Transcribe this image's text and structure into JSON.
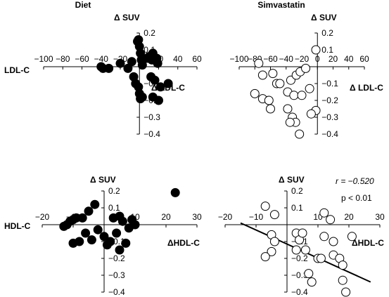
{
  "chart_data": [
    {
      "type": "scatter",
      "title": "Diet",
      "x_axis_label": "LDL-C",
      "x_axis_label_right": "Δ LDL-C",
      "y_axis_label": "Δ SUV",
      "xlim": [
        -100,
        60
      ],
      "ylim": [
        -0.4,
        0.2
      ],
      "x_ticks": [
        -100,
        -80,
        -60,
        -40,
        -20,
        0,
        20,
        40,
        60
      ],
      "y_ticks": [
        0.2,
        0.1,
        -0.1,
        -0.2,
        -0.3,
        -0.4
      ],
      "marker": "filled",
      "points": [
        [
          -40,
          0
        ],
        [
          -38,
          -0.01
        ],
        [
          -32,
          -0.01
        ],
        [
          -20,
          0.02
        ],
        [
          -12,
          -0.01
        ],
        [
          -8,
          0.03
        ],
        [
          -2,
          0.15
        ],
        [
          -1,
          0.16
        ],
        [
          0,
          0.12
        ],
        [
          1,
          0.08
        ],
        [
          2,
          0.04
        ],
        [
          3,
          0.01
        ],
        [
          8,
          0.05
        ],
        [
          10,
          0.06
        ],
        [
          13,
          0.04
        ],
        [
          14,
          0.08
        ],
        [
          18,
          0.05
        ],
        [
          19,
          0.02
        ],
        [
          -6,
          -0.06
        ],
        [
          -4,
          -0.1
        ],
        [
          -1,
          -0.12
        ],
        [
          0,
          -0.16
        ],
        [
          1,
          -0.19
        ],
        [
          3,
          -0.18
        ],
        [
          12,
          -0.06
        ],
        [
          16,
          -0.08
        ],
        [
          22,
          -0.12
        ],
        [
          30,
          -0.1
        ],
        [
          14,
          -0.18
        ],
        [
          20,
          -0.2
        ]
      ]
    },
    {
      "type": "scatter",
      "title": "Simvastatin",
      "x_axis_label": "",
      "x_axis_label_right": "Δ LDL-C",
      "y_axis_label": "Δ SUV",
      "xlim": [
        -100,
        60
      ],
      "ylim": [
        -0.4,
        0.2
      ],
      "x_ticks": [
        -100,
        -80,
        -60,
        -40,
        -20,
        0,
        20,
        40,
        60
      ],
      "y_ticks": [
        0.2,
        0.1,
        -0.1,
        -0.2,
        -0.3,
        -0.4
      ],
      "marker": "open",
      "points": [
        [
          -75,
          0.02
        ],
        [
          -70,
          -0.05
        ],
        [
          -57,
          -0.04
        ],
        [
          -52,
          -0.1
        ],
        [
          -48,
          -0.1
        ],
        [
          -80,
          -0.16
        ],
        [
          -70,
          -0.19
        ],
        [
          -62,
          -0.2
        ],
        [
          -60,
          -0.25
        ],
        [
          -34,
          -0.08
        ],
        [
          -27,
          -0.05
        ],
        [
          -22,
          -0.03
        ],
        [
          -15,
          -0.01
        ],
        [
          -38,
          -0.15
        ],
        [
          -30,
          -0.17
        ],
        [
          -20,
          -0.17
        ],
        [
          -10,
          -0.13
        ],
        [
          -38,
          -0.25
        ],
        [
          -32,
          -0.3
        ],
        [
          -28,
          -0.33
        ],
        [
          -23,
          -0.4
        ],
        [
          -2,
          -0.26
        ],
        [
          -8,
          -0.28
        ],
        [
          -2,
          0.1
        ],
        [
          -35,
          -0.33
        ]
      ]
    },
    {
      "type": "scatter",
      "title": "",
      "x_axis_label": "HDL-C",
      "x_axis_label_right": "ΔHDL-C",
      "y_axis_label": "Δ SUV",
      "xlim": [
        -20,
        30
      ],
      "ylim": [
        -0.4,
        0.2
      ],
      "x_ticks": [
        -20,
        -10,
        10,
        20,
        30
      ],
      "y_ticks": [
        0.2,
        0.1,
        -0.1,
        -0.2,
        -0.3,
        -0.4
      ],
      "marker": "filled",
      "points": [
        [
          -13,
          -0.01
        ],
        [
          -12,
          0.0
        ],
        [
          -11,
          0.02
        ],
        [
          -10,
          0.03
        ],
        [
          -9,
          0.04
        ],
        [
          -7,
          0.04
        ],
        [
          -5,
          0.08
        ],
        [
          -3,
          0.12
        ],
        [
          -10,
          -0.11
        ],
        [
          -8,
          -0.1
        ],
        [
          -6,
          -0.05
        ],
        [
          -4,
          -0.09
        ],
        [
          -2,
          -0.03
        ],
        [
          0,
          -0.07
        ],
        [
          1,
          -0.12
        ],
        [
          2,
          -0.1
        ],
        [
          4,
          -0.05
        ],
        [
          5,
          -0.15
        ],
        [
          3,
          0.04
        ],
        [
          5,
          0.05
        ],
        [
          6,
          0.02
        ],
        [
          8,
          -0.02
        ],
        [
          9,
          0.03
        ],
        [
          10,
          0.0
        ],
        [
          7,
          -0.11
        ],
        [
          23,
          0.19
        ]
      ]
    },
    {
      "type": "scatter",
      "title": "",
      "x_axis_label": "",
      "x_axis_label_right": "ΔHDL-C",
      "y_axis_label": "Δ SUV",
      "xlim": [
        -20,
        30
      ],
      "ylim": [
        -0.4,
        0.2
      ],
      "x_ticks": [
        -20,
        -10,
        10,
        20,
        30
      ],
      "y_ticks": [
        0.2,
        0.1,
        -0.1,
        -0.2,
        -0.3,
        -0.4
      ],
      "marker": "open",
      "annotations": [
        "r = −0.520",
        "p < 0.01"
      ],
      "regression_line": {
        "x": [
          -15,
          27
        ],
        "y": [
          0.01,
          -0.34
        ]
      },
      "points": [
        [
          -7,
          0.11
        ],
        [
          -4,
          0.06
        ],
        [
          -5,
          -0.06
        ],
        [
          -4,
          -0.1
        ],
        [
          -5,
          -0.16
        ],
        [
          -7,
          -0.19
        ],
        [
          3,
          -0.05
        ],
        [
          4,
          -0.09
        ],
        [
          3,
          -0.15
        ],
        [
          5,
          -0.05
        ],
        [
          6,
          -0.15
        ],
        [
          7,
          -0.29
        ],
        [
          8,
          -0.34
        ],
        [
          10,
          -0.2
        ],
        [
          11,
          -0.2
        ],
        [
          12,
          0.07
        ],
        [
          14,
          0.03
        ],
        [
          15,
          -0.1
        ],
        [
          15,
          -0.18
        ],
        [
          17,
          -0.2
        ],
        [
          18,
          -0.24
        ],
        [
          18,
          -0.33
        ],
        [
          19,
          -0.4
        ],
        [
          21,
          -0.07
        ],
        [
          12,
          -0.07
        ]
      ]
    }
  ]
}
